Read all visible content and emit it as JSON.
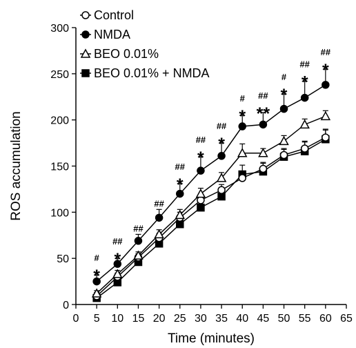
{
  "chart_data": {
    "type": "line",
    "title": "",
    "xlabel": "Time (minutes)",
    "ylabel": "ROS accumulation",
    "xlim": [
      0,
      65
    ],
    "ylim": [
      0,
      300
    ],
    "x_ticks": [
      0,
      5,
      10,
      15,
      20,
      25,
      30,
      35,
      40,
      45,
      50,
      55,
      60,
      65
    ],
    "y_ticks": [
      0,
      50,
      100,
      150,
      200,
      250,
      300
    ],
    "x_tick_labels": [
      "0",
      "5",
      "10",
      "15",
      "20",
      "25",
      "30",
      "35",
      "40",
      "45",
      "50",
      "55",
      "60",
      "65"
    ],
    "y_tick_labels": [
      "0",
      "50",
      "100",
      "150",
      "200",
      "250",
      "300"
    ],
    "grid": false,
    "legend_position": "top-left",
    "x": [
      5,
      10,
      15,
      20,
      25,
      30,
      35,
      40,
      45,
      50,
      55,
      60
    ],
    "series": [
      {
        "name": "Control",
        "marker": "circle-open",
        "values": [
          9,
          30,
          51,
          72,
          94,
          113,
          124,
          137,
          147,
          162,
          169,
          181
        ],
        "errors": [
          4,
          4,
          4,
          5,
          6,
          6,
          6,
          7,
          7,
          7,
          8,
          8
        ]
      },
      {
        "name": "NMDA",
        "marker": "circle-filled",
        "values": [
          25,
          44,
          69,
          94,
          120,
          145,
          161,
          193,
          195,
          212,
          224,
          238
        ],
        "errors": [
          7,
          6,
          7,
          9,
          11,
          15,
          14,
          12,
          13,
          16,
          18,
          17
        ]
      },
      {
        "name": "BEO 0.01%",
        "marker": "triangle-open",
        "values": [
          12,
          33,
          53,
          76,
          97,
          120,
          137,
          164,
          164,
          177,
          195,
          204
        ],
        "errors": [
          3,
          4,
          4,
          5,
          6,
          6,
          6,
          10,
          5,
          6,
          6,
          6
        ]
      },
      {
        "name": "BEO 0.01% + NMDA",
        "marker": "square-filled",
        "values": [
          7,
          24,
          46,
          66,
          87,
          105,
          117,
          141,
          144,
          160,
          166,
          179
        ],
        "errors": [
          3,
          4,
          4,
          5,
          6,
          7,
          8,
          10,
          9,
          8,
          10,
          11
        ]
      }
    ],
    "annotations": {
      "stars": [
        "*",
        "*",
        "",
        "",
        "*",
        "*",
        "*",
        "*",
        "**",
        "*",
        "*",
        "*"
      ],
      "hashes": [
        "#",
        "##",
        "##",
        "##",
        "##",
        "##",
        "##",
        "#",
        "##",
        "#",
        "##",
        "##"
      ]
    },
    "colors": {
      "line": "#000000",
      "fill_open": "#ffffff",
      "fill_solid": "#000000"
    }
  }
}
